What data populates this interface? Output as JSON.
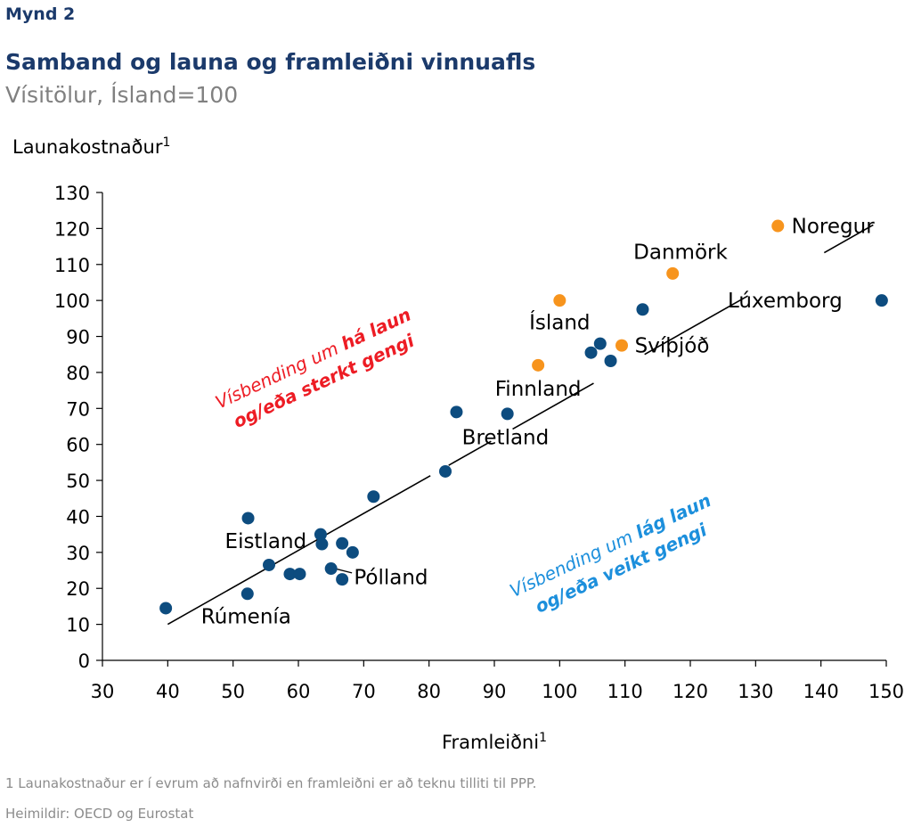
{
  "figure_label": "Mynd 2",
  "title": "Samband og launa og framleiðni vinnuafls",
  "subtitle": "Vísitölur, Ísland=100",
  "footnote": "1 Launakostnaður er í evrum að nafnvirði en framleiðni er að teknu tilliti til PPP.",
  "source": "Heimildir: OECD og Eurostat",
  "chart_data": {
    "type": "scatter",
    "xlabel": "Framleiðni",
    "ylabel": "Launakostnaður",
    "superscript": "1",
    "xlim": [
      30,
      150
    ],
    "ylim": [
      0,
      130
    ],
    "xticks": [
      30,
      40,
      50,
      60,
      70,
      80,
      90,
      100,
      110,
      120,
      130,
      140,
      150
    ],
    "yticks": [
      0,
      10,
      20,
      30,
      40,
      50,
      60,
      70,
      80,
      90,
      100,
      110,
      120,
      130
    ],
    "colors": {
      "blue": "#0d4c7f",
      "orange": "#f7941d",
      "red": "#ed1c24",
      "lightblue": "#1c8fdc"
    },
    "points": [
      {
        "x": 39.7,
        "y": 14.5,
        "color": "blue"
      },
      {
        "x": 52.2,
        "y": 18.5,
        "color": "blue"
      },
      {
        "x": 52.3,
        "y": 39.5,
        "color": "blue"
      },
      {
        "x": 55.5,
        "y": 26.5,
        "color": "blue"
      },
      {
        "x": 58.7,
        "y": 24.0,
        "color": "blue"
      },
      {
        "x": 60.2,
        "y": 24.0,
        "color": "blue"
      },
      {
        "x": 63.4,
        "y": 35.0,
        "color": "blue"
      },
      {
        "x": 63.6,
        "y": 32.3,
        "color": "blue"
      },
      {
        "x": 65.0,
        "y": 25.5,
        "color": "blue"
      },
      {
        "x": 66.7,
        "y": 22.5,
        "color": "blue"
      },
      {
        "x": 66.7,
        "y": 32.5,
        "color": "blue"
      },
      {
        "x": 68.3,
        "y": 30.0,
        "color": "blue"
      },
      {
        "x": 71.5,
        "y": 45.5,
        "color": "blue"
      },
      {
        "x": 82.5,
        "y": 52.5,
        "color": "blue"
      },
      {
        "x": 84.2,
        "y": 69.0,
        "color": "blue"
      },
      {
        "x": 92.0,
        "y": 68.5,
        "color": "blue"
      },
      {
        "x": 96.7,
        "y": 82.0,
        "color": "orange"
      },
      {
        "x": 100.0,
        "y": 100.0,
        "color": "orange"
      },
      {
        "x": 104.8,
        "y": 85.5,
        "color": "blue"
      },
      {
        "x": 106.2,
        "y": 88.0,
        "color": "blue"
      },
      {
        "x": 107.8,
        "y": 83.2,
        "color": "blue"
      },
      {
        "x": 109.5,
        "y": 87.5,
        "color": "orange"
      },
      {
        "x": 112.7,
        "y": 97.5,
        "color": "blue"
      },
      {
        "x": 117.3,
        "y": 107.5,
        "color": "orange"
      },
      {
        "x": 133.4,
        "y": 120.7,
        "color": "orange"
      },
      {
        "x": 149.3,
        "y": 100.0,
        "color": "blue"
      }
    ],
    "trendline": {
      "x": [
        40,
        148.5
      ],
      "y": [
        10,
        121.5
      ]
    },
    "trend_gaps": [
      [
        105.2,
        113.0
      ],
      [
        128.8,
        140.5
      ],
      [
        148.0,
        150.0
      ],
      [
        89.5,
        92.8
      ],
      [
        80.2,
        83.0
      ]
    ],
    "labels": [
      {
        "text": "Noregur",
        "x": 135.5,
        "y": 120.7,
        "anchor": "start"
      },
      {
        "text": "Danmörk",
        "x": 118.5,
        "y": 113.5,
        "anchor": "middle"
      },
      {
        "text": "Lúxemborg",
        "x": 134.5,
        "y": 100.0,
        "anchor": "middle"
      },
      {
        "text": "Ísland",
        "x": 100.0,
        "y": 94.0,
        "anchor": "middle"
      },
      {
        "text": "Svíþjóð",
        "x": 111.5,
        "y": 87.5,
        "anchor": "start"
      },
      {
        "text": "Finnland",
        "x": 96.7,
        "y": 75.5,
        "anchor": "middle"
      },
      {
        "text": "Bretland",
        "x": 91.7,
        "y": 62.0,
        "anchor": "middle"
      },
      {
        "text": "Eistland",
        "x": 55.0,
        "y": 33.2,
        "anchor": "middle"
      },
      {
        "text": "Pólland",
        "x": 68.5,
        "y": 23.2,
        "anchor": "start"
      },
      {
        "text": "Rúmenía",
        "x": 52.0,
        "y": 12.2,
        "anchor": "middle"
      }
    ],
    "annotations": [
      {
        "id": "high",
        "prefix": "Vísbending um ",
        "emph": "há laun",
        "line2": "og/eða sterkt gengi",
        "color": "red",
        "cx": 63.0,
        "cy": 81.0,
        "rotation": -25
      },
      {
        "id": "low",
        "prefix": "Vísbending um ",
        "emph": "lág laun",
        "line2": "og/eða veikt gengi",
        "color": "lightblue",
        "cx": 108.5,
        "cy": 29.0,
        "rotation": -25
      }
    ]
  }
}
